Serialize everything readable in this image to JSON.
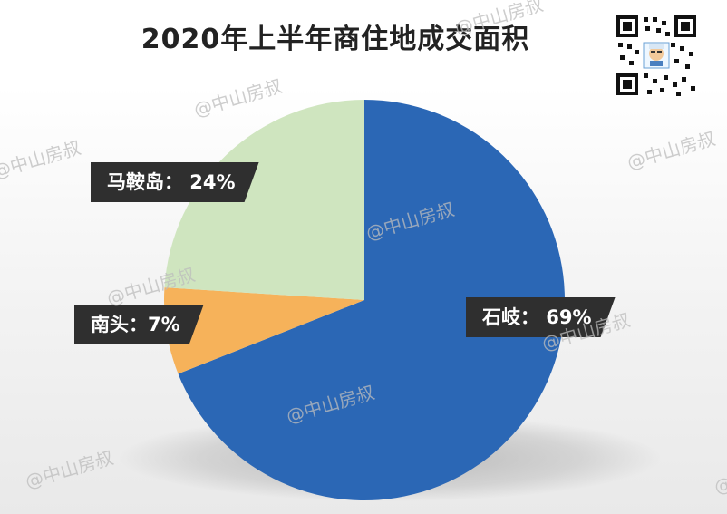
{
  "title": "2020年上半年商住地成交面积",
  "watermark_text": "@中山房叔",
  "qr_icon": "qr-code-icon",
  "chart_data": {
    "type": "pie",
    "title": "2020年上半年商住地成交面积",
    "slices": [
      {
        "name": "石岐",
        "value": 69,
        "color": "#2b67b5"
      },
      {
        "name": "南头",
        "value": 7,
        "color": "#f6b25a"
      },
      {
        "name": "马鞍岛",
        "value": 24,
        "color": "#cfe5bf"
      }
    ],
    "labels": [
      {
        "text": "石岐： 69%"
      },
      {
        "text": "南头：7%"
      },
      {
        "text": "马鞍岛： 24%"
      }
    ],
    "start": "12 o'clock",
    "direction": "clockwise"
  }
}
